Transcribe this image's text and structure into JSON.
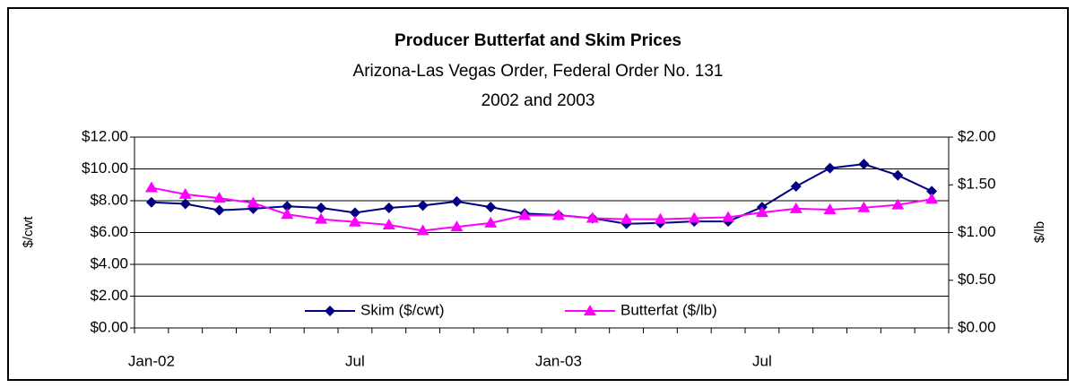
{
  "chart_data": {
    "type": "line",
    "title": "Producer Butterfat and Skim Prices",
    "subtitle": [
      "Arizona-Las Vegas Order, Federal Order No. 131",
      "2002 and 2003"
    ],
    "ylabel": "$/cwt",
    "y2label": "$/lb",
    "categories": [
      "Jan-02",
      null,
      null,
      null,
      null,
      null,
      "Jul",
      null,
      null,
      null,
      null,
      null,
      "Jan-03",
      null,
      null,
      null,
      null,
      null,
      "Jul",
      null,
      null,
      null,
      null,
      null
    ],
    "series": [
      {
        "name": "Skim ($/cwt)",
        "color": "#000080",
        "marker": "diamond",
        "axis": "y",
        "values": [
          7.9,
          7.8,
          7.4,
          7.5,
          7.65,
          7.55,
          7.25,
          7.55,
          7.7,
          7.95,
          7.6,
          7.2,
          7.1,
          6.9,
          6.55,
          6.6,
          6.7,
          6.7,
          7.6,
          8.9,
          10.05,
          10.3,
          9.6,
          8.6
        ]
      },
      {
        "name": "Butterfat ($/lb)",
        "color": "#ff00ff",
        "marker": "triangle",
        "axis": "y2",
        "values": [
          1.47,
          1.4,
          1.36,
          1.31,
          1.19,
          1.14,
          1.11,
          1.08,
          1.02,
          1.06,
          1.1,
          1.18,
          1.18,
          1.15,
          1.14,
          1.14,
          1.15,
          1.16,
          1.21,
          1.25,
          1.24,
          1.26,
          1.29,
          1.35
        ]
      }
    ],
    "ylim": [
      0,
      12
    ],
    "yticks": [
      {
        "value": 0,
        "label": "$0.00"
      },
      {
        "value": 2,
        "label": "$2.00"
      },
      {
        "value": 4,
        "label": "$4.00"
      },
      {
        "value": 6,
        "label": "$6.00"
      },
      {
        "value": 8,
        "label": "$8.00"
      },
      {
        "value": 10,
        "label": "$10.00"
      },
      {
        "value": 12,
        "label": "$12.00"
      }
    ],
    "y2lim": [
      0,
      2
    ],
    "y2ticks": [
      {
        "value": 0,
        "label": "$0.00"
      },
      {
        "value": 0.5,
        "label": "$0.50"
      },
      {
        "value": 1,
        "label": "$1.00"
      },
      {
        "value": 1.5,
        "label": "$1.50"
      },
      {
        "value": 2,
        "label": "$2.00"
      }
    ],
    "grid": true,
    "legend": "bottom"
  }
}
